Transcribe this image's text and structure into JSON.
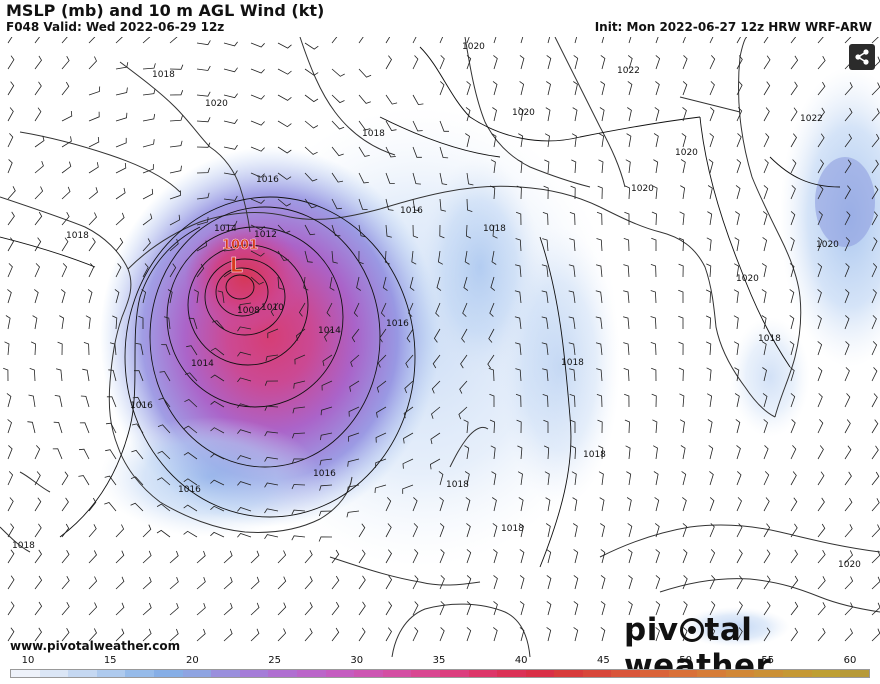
{
  "header": {
    "title": "MSLP (mb) and 10 m AGL Wind (kt)",
    "valid": "F048 Valid: Wed 2022-06-29 12z",
    "init": "Init: Mon 2022-06-27 12z HRW WRF-ARW"
  },
  "map": {
    "low_pressure": {
      "value": "1001",
      "symbol": "L",
      "color": "#d93a1e"
    },
    "isobar_labels": [
      "1020",
      "1018",
      "1020",
      "1022",
      "1020",
      "1018",
      "1022",
      "1018",
      "1016",
      "1016",
      "1018",
      "1020",
      "1018",
      "1014",
      "1012",
      "1010",
      "1008",
      "1014",
      "1016",
      "1014",
      "1016",
      "1018",
      "1016",
      "1016",
      "1018",
      "1018",
      "1020",
      "1018",
      "1020",
      "1020",
      "1018",
      "1020"
    ],
    "colors": {
      "land": "#ffffff",
      "coast": "#333333",
      "isobar": "#111111",
      "wind_barb": "#222222"
    }
  },
  "share_icon": "share-icon",
  "footer": {
    "website": "www.pivotalweather.com",
    "logo_text": [
      "piv",
      "tal weather"
    ]
  },
  "colorbar": {
    "ticks": [
      "10",
      "15",
      "20",
      "25",
      "30",
      "35",
      "40",
      "45",
      "50",
      "55",
      "60"
    ],
    "colors": [
      "#eef2fa",
      "#dbe6f6",
      "#c5d8f2",
      "#aecaee",
      "#96bbea",
      "#86aee6",
      "#8fa4e2",
      "#9a8fdd",
      "#a57cd8",
      "#b06fd1",
      "#bb65c9",
      "#c55cc0",
      "#cd55b2",
      "#d44ea3",
      "#d94691",
      "#dc3e7e",
      "#dd3669",
      "#db3156",
      "#d92f46",
      "#d83b3b",
      "#d8473a",
      "#d9553a",
      "#da6339",
      "#d97038",
      "#d67c37",
      "#d18736",
      "#cb9035",
      "#c59834",
      "#be9f33",
      "#b79a38"
    ]
  }
}
